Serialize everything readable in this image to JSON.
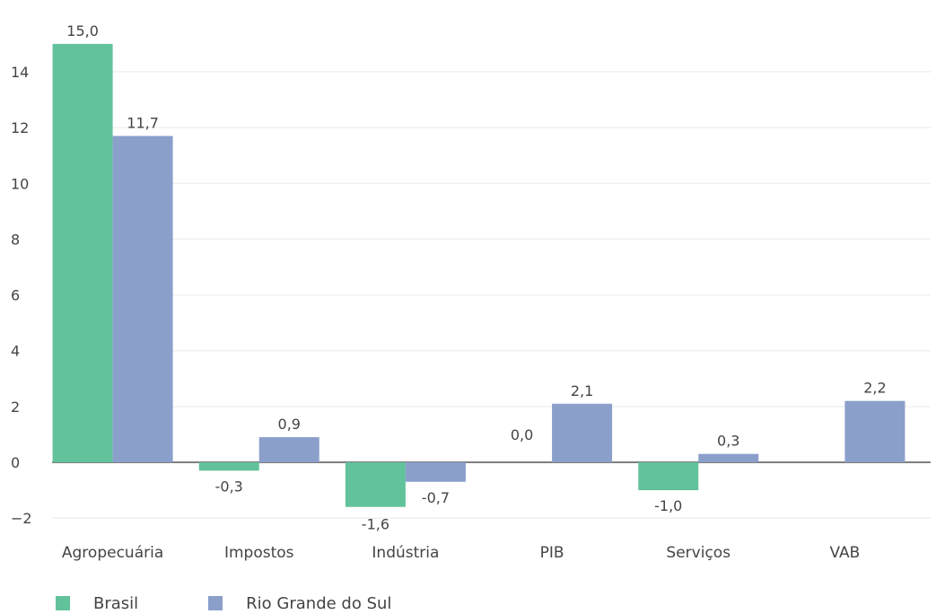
{
  "chart_data": {
    "type": "bar",
    "categories": [
      "Agropecuária",
      "Impostos",
      "Indústria",
      "PIB",
      "Serviços",
      "VAB"
    ],
    "series": [
      {
        "name": "Brasil",
        "values": [
          15.0,
          -0.3,
          -1.6,
          0.0,
          -1.0,
          null
        ],
        "labels": [
          "15,0",
          "-0,3",
          "-1,6",
          "0,0",
          "-1,0",
          ""
        ]
      },
      {
        "name": "Rio Grande do Sul",
        "values": [
          11.7,
          0.9,
          -0.7,
          2.1,
          0.3,
          2.2
        ],
        "labels": [
          "11,7",
          "0,9",
          "-0,7",
          "2,1",
          "0,3",
          "2,2"
        ]
      }
    ],
    "yticks": [
      -2,
      0,
      2,
      4,
      6,
      8,
      10,
      12,
      14
    ],
    "ytick_labels": [
      "−2",
      "0",
      "2",
      "4",
      "6",
      "8",
      "10",
      "12",
      "14"
    ],
    "ylim": [
      -2.3,
      15.7
    ],
    "grid": true,
    "legend_position": "bottom-left"
  },
  "colors": {
    "brasil": "#62c29c",
    "rio_grande_do_sul": "#8b9fcb",
    "grid": "#eef0f3",
    "zero_line": "#555555"
  }
}
